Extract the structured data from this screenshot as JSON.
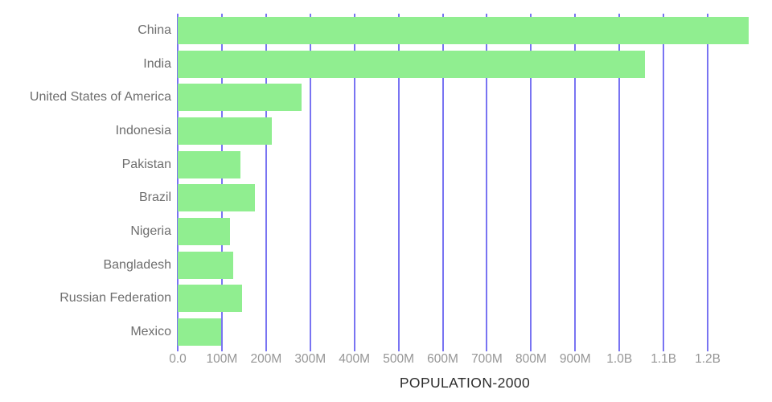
{
  "chart_data": {
    "type": "bar",
    "orientation": "horizontal",
    "title": "POPULATION-2000",
    "xlabel": "",
    "ylabel": "",
    "categories": [
      "China",
      "India",
      "United States of America",
      "Indonesia",
      "Pakistan",
      "Brazil",
      "Nigeria",
      "Bangladesh",
      "Russian Federation",
      "Mexico"
    ],
    "series": [
      {
        "name": "POPULATION-2000",
        "values_millions": [
          1293,
          1057,
          281,
          213,
          142,
          175,
          119,
          126,
          146,
          98
        ]
      }
    ],
    "x_ticks": [
      {
        "value_millions": 0,
        "label": "0.0"
      },
      {
        "value_millions": 100,
        "label": "100M"
      },
      {
        "value_millions": 200,
        "label": "200M"
      },
      {
        "value_millions": 300,
        "label": "300M"
      },
      {
        "value_millions": 400,
        "label": "400M"
      },
      {
        "value_millions": 500,
        "label": "500M"
      },
      {
        "value_millions": 600,
        "label": "600M"
      },
      {
        "value_millions": 700,
        "label": "700M"
      },
      {
        "value_millions": 800,
        "label": "800M"
      },
      {
        "value_millions": 900,
        "label": "900M"
      },
      {
        "value_millions": 1000,
        "label": "1.0B"
      },
      {
        "value_millions": 1100,
        "label": "1.1B"
      },
      {
        "value_millions": 1200,
        "label": "1.2B"
      }
    ],
    "xlim_millions": [
      0,
      1300
    ],
    "grid": true,
    "legend": false,
    "colors": {
      "bar": "#90ee90",
      "gridline": "#7974f2",
      "category_label": "#6e6e6e",
      "tick_label": "#969696",
      "title": "#2d2d2d",
      "background": "#ffffff"
    }
  }
}
